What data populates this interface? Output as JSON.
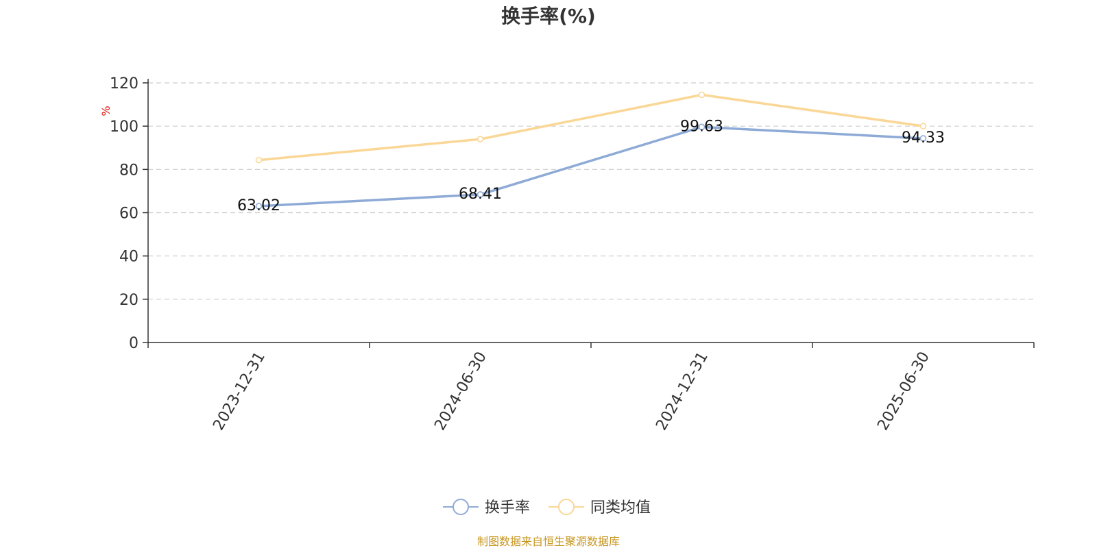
{
  "chart_data": {
    "type": "line",
    "title": "换手率(%)",
    "ylabel": "%",
    "ylim": [
      0,
      120
    ],
    "yticks": [
      0,
      20,
      40,
      60,
      80,
      100,
      120
    ],
    "categories": [
      "2023-12-31",
      "2024-06-30",
      "2024-12-31",
      "2025-06-30"
    ],
    "grid": true,
    "legend_position": "bottom-center",
    "series": [
      {
        "name": "换手率",
        "values": [
          63.02,
          68.41,
          99.63,
          94.33
        ],
        "labels": [
          "63.02",
          "68.41",
          "99.63",
          "94.33"
        ],
        "color": "#8eaad6"
      },
      {
        "name": "同类均值",
        "values": [
          84.3,
          94.0,
          114.5,
          100.0
        ],
        "color": "#fad796"
      }
    ]
  },
  "footer": {
    "source": "制图数据来自恒生聚源数据库",
    "color": "#c8961e"
  },
  "colors": {
    "axis": "#333333",
    "grid": "#cccccc",
    "unit": "#e0120f"
  }
}
